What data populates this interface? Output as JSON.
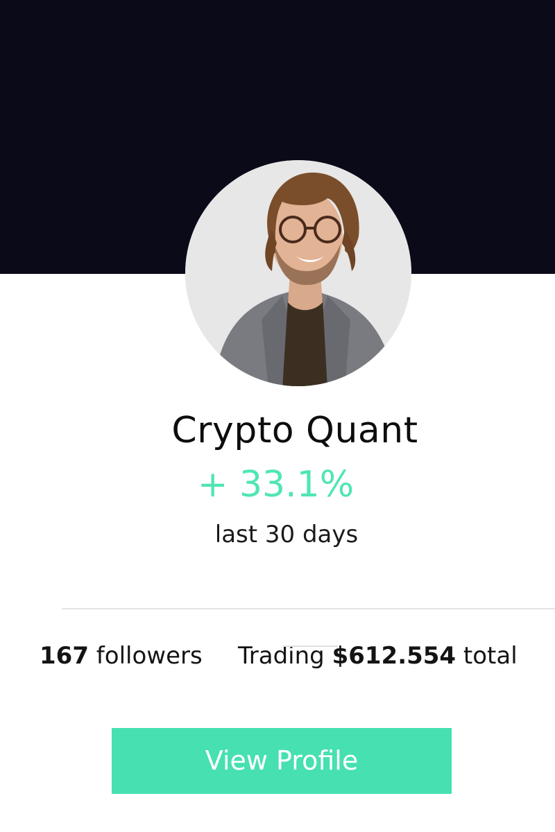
{
  "profile": {
    "name": "Crypto Quant",
    "gain": "+ 33.1%",
    "period": "last 30 days"
  },
  "stats": {
    "followers_count": "167",
    "followers_label": " followers",
    "trading_prefix": "Trading ",
    "trading_amount": "$612.554",
    "trading_suffix": " total"
  },
  "actions": {
    "view_profile_label": "View Profile"
  },
  "colors": {
    "hero_background": "#0a0a19",
    "accent": "#46e0b1",
    "gain_text": "#4fe6b2"
  }
}
